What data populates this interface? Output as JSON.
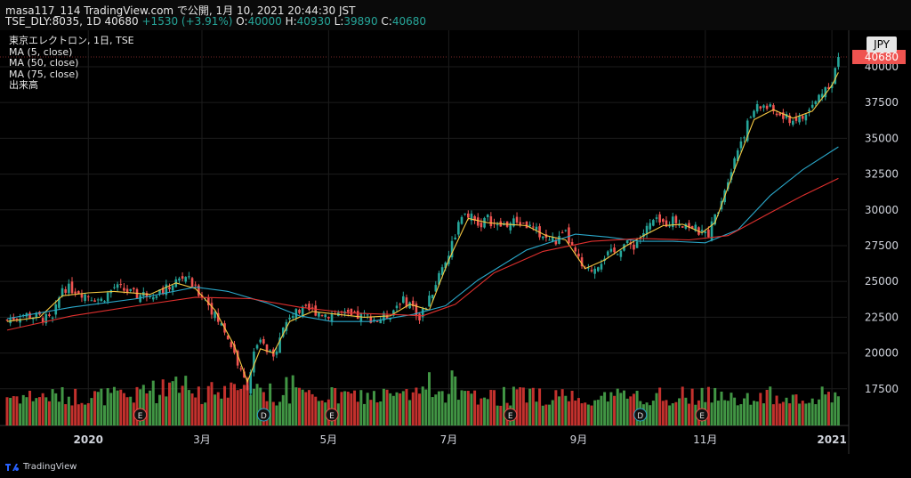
{
  "header": {
    "line1": "masa117_114 TradingView.com で公開, 1月 10, 2021 20:44:30 JST",
    "symbol": "TSE_DLY:8035, 1D 40680",
    "change": "+1530 (+3.91%)",
    "o_label": "O:",
    "o_val": "40000",
    "h_label": "H:",
    "h_val": "40930",
    "l_label": "L:",
    "l_val": "39890",
    "c_label": "C:",
    "c_val": "40680"
  },
  "legend": [
    "東京エレクトロン, 1日, TSE",
    "MA (5, close)",
    "MA (50, close)",
    "MA (75, close)",
    "出来高"
  ],
  "currency_button": "JPY",
  "price_tag": "40680",
  "brand": "TradingView",
  "colors": {
    "up": "#26a69a",
    "down": "#ef5350",
    "ma5": "#f5c842",
    "ma50": "#2aa7c9",
    "ma75": "#e0302e",
    "vol_up": "#4caf50",
    "vol_down": "#e53935",
    "grid": "#1c1c1c",
    "axis_text": "#d1d4dc"
  },
  "chart_data": {
    "type": "candlestick",
    "title": "東京エレクトロン, 1日, TSE",
    "x_labels": [
      "2020",
      "3月",
      "5月",
      "7月",
      "9月",
      "11月",
      "2021"
    ],
    "y_ticks": [
      17500,
      20000,
      22500,
      25000,
      27500,
      30000,
      32500,
      35000,
      37500,
      40000
    ],
    "ylim": [
      15000,
      41800
    ],
    "close_path": [
      [
        0,
        22300
      ],
      [
        5,
        22700
      ],
      [
        10,
        22500
      ],
      [
        14,
        22300
      ],
      [
        17,
        24600
      ],
      [
        21,
        24400
      ],
      [
        25,
        24000
      ],
      [
        29,
        23700
      ],
      [
        33,
        24600
      ],
      [
        36,
        24400
      ],
      [
        40,
        24000
      ],
      [
        44,
        24200
      ],
      [
        48,
        24300
      ],
      [
        52,
        25000
      ],
      [
        55,
        25400
      ],
      [
        58,
        24400
      ],
      [
        61,
        23900
      ],
      [
        64,
        22600
      ],
      [
        67,
        21600
      ],
      [
        70,
        20000
      ],
      [
        72,
        18600
      ],
      [
        74,
        17700
      ],
      [
        76,
        19900
      ],
      [
        78,
        20800
      ],
      [
        80,
        20100
      ],
      [
        82,
        19600
      ],
      [
        84,
        21300
      ],
      [
        87,
        22600
      ],
      [
        90,
        22900
      ],
      [
        94,
        23000
      ],
      [
        98,
        22700
      ],
      [
        102,
        22800
      ],
      [
        106,
        22500
      ],
      [
        110,
        22600
      ],
      [
        114,
        22300
      ],
      [
        118,
        22700
      ],
      [
        121,
        23700
      ],
      [
        124,
        23500
      ],
      [
        127,
        22500
      ],
      [
        130,
        23700
      ],
      [
        133,
        25500
      ],
      [
        136,
        27000
      ],
      [
        139,
        29000
      ],
      [
        142,
        29700
      ],
      [
        145,
        28900
      ],
      [
        148,
        29400
      ],
      [
        151,
        28800
      ],
      [
        154,
        29000
      ],
      [
        157,
        29200
      ],
      [
        160,
        28900
      ],
      [
        163,
        28500
      ],
      [
        166,
        28000
      ],
      [
        169,
        27800
      ],
      [
        172,
        28300
      ],
      [
        175,
        26900
      ],
      [
        178,
        25600
      ],
      [
        181,
        26000
      ],
      [
        184,
        26800
      ],
      [
        187,
        27000
      ],
      [
        190,
        27600
      ],
      [
        193,
        27500
      ],
      [
        196,
        28400
      ],
      [
        199,
        29200
      ],
      [
        202,
        29000
      ],
      [
        205,
        29300
      ],
      [
        208,
        29100
      ],
      [
        211,
        28800
      ],
      [
        214,
        28300
      ],
      [
        216,
        28400
      ],
      [
        218,
        29500
      ],
      [
        221,
        31500
      ],
      [
        224,
        33700
      ],
      [
        227,
        35400
      ],
      [
        230,
        37000
      ],
      [
        233,
        37300
      ],
      [
        236,
        36900
      ],
      [
        239,
        36400
      ],
      [
        242,
        36300
      ],
      [
        245,
        36400
      ],
      [
        248,
        37200
      ],
      [
        251,
        38300
      ],
      [
        254,
        39000
      ],
      [
        256,
        40680
      ]
    ],
    "ma5_path": [
      [
        0,
        22200
      ],
      [
        10,
        22500
      ],
      [
        17,
        24000
      ],
      [
        25,
        24200
      ],
      [
        33,
        24300
      ],
      [
        44,
        24100
      ],
      [
        52,
        24900
      ],
      [
        58,
        24500
      ],
      [
        64,
        23000
      ],
      [
        70,
        20500
      ],
      [
        74,
        18000
      ],
      [
        78,
        20300
      ],
      [
        82,
        20000
      ],
      [
        87,
        22200
      ],
      [
        94,
        22900
      ],
      [
        102,
        22700
      ],
      [
        110,
        22500
      ],
      [
        118,
        22600
      ],
      [
        124,
        23400
      ],
      [
        130,
        23000
      ],
      [
        136,
        26500
      ],
      [
        142,
        29400
      ],
      [
        148,
        29100
      ],
      [
        154,
        29000
      ],
      [
        160,
        28900
      ],
      [
        166,
        28200
      ],
      [
        172,
        27900
      ],
      [
        178,
        25900
      ],
      [
        184,
        26500
      ],
      [
        190,
        27400
      ],
      [
        196,
        28200
      ],
      [
        202,
        28900
      ],
      [
        208,
        29000
      ],
      [
        214,
        28400
      ],
      [
        218,
        29100
      ],
      [
        224,
        32800
      ],
      [
        230,
        36300
      ],
      [
        236,
        37000
      ],
      [
        242,
        36400
      ],
      [
        248,
        36900
      ],
      [
        254,
        38700
      ],
      [
        256,
        39600
      ]
    ],
    "ma50_path": [
      [
        0,
        22400
      ],
      [
        20,
        23200
      ],
      [
        40,
        23800
      ],
      [
        58,
        24600
      ],
      [
        68,
        24300
      ],
      [
        80,
        23500
      ],
      [
        90,
        22600
      ],
      [
        100,
        22200
      ],
      [
        112,
        22200
      ],
      [
        125,
        22700
      ],
      [
        135,
        23300
      ],
      [
        145,
        25100
      ],
      [
        160,
        27200
      ],
      [
        175,
        28300
      ],
      [
        185,
        28100
      ],
      [
        195,
        27800
      ],
      [
        205,
        27800
      ],
      [
        215,
        27700
      ],
      [
        225,
        28600
      ],
      [
        235,
        31000
      ],
      [
        245,
        32800
      ],
      [
        256,
        34400
      ]
    ],
    "ma75_path": [
      [
        0,
        21600
      ],
      [
        20,
        22600
      ],
      [
        40,
        23300
      ],
      [
        58,
        23900
      ],
      [
        75,
        23800
      ],
      [
        90,
        23200
      ],
      [
        105,
        22800
      ],
      [
        118,
        22700
      ],
      [
        128,
        22600
      ],
      [
        138,
        23400
      ],
      [
        150,
        25600
      ],
      [
        165,
        27100
      ],
      [
        180,
        27800
      ],
      [
        195,
        28000
      ],
      [
        210,
        27900
      ],
      [
        222,
        28200
      ],
      [
        235,
        29800
      ],
      [
        245,
        31000
      ],
      [
        256,
        32200
      ]
    ],
    "event_markers": [
      {
        "label": "E",
        "day": 41
      },
      {
        "label": "D",
        "day": 79
      },
      {
        "label": "E",
        "day": 100
      },
      {
        "label": "E",
        "day": 155
      },
      {
        "label": "D",
        "day": 195
      },
      {
        "label": "E",
        "day": 214
      }
    ]
  }
}
